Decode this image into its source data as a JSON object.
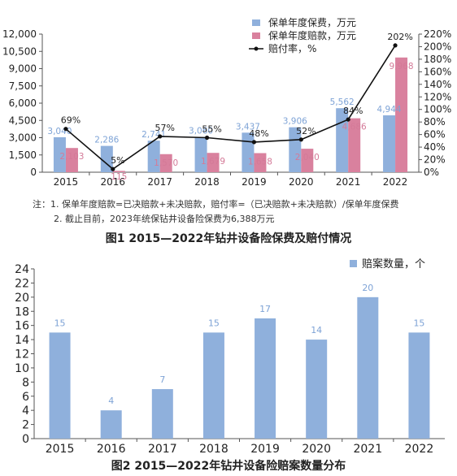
{
  "chart_data": [
    {
      "type": "bar",
      "caption": "图1   2015—2022年钻井设备险保费及赔付情况",
      "categories": [
        "2015",
        "2016",
        "2017",
        "2018",
        "2019",
        "2020",
        "2021",
        "2022"
      ],
      "series": [
        {
          "name": "保单年度保费，万元",
          "type": "bar",
          "axis": "left",
          "color": "#8fb0dc",
          "values": [
            3040,
            2286,
            2741,
            3060,
            3437,
            3906,
            5562,
            4944
          ]
        },
        {
          "name": "保单年度赔款，万元",
          "type": "bar",
          "axis": "left",
          "color": "#d9819e",
          "values": [
            2103,
            115,
            1570,
            1679,
            1658,
            2040,
            4686,
            9968
          ]
        },
        {
          "name": "赔付率，%",
          "type": "line",
          "axis": "right",
          "color": "#111111",
          "values": [
            69,
            5,
            57,
            55,
            48,
            52,
            84,
            202
          ]
        }
      ],
      "left_ticks": [
        "0",
        "1,500",
        "3,000",
        "4,500",
        "6,000",
        "7,500",
        "9,000",
        "10,500",
        "12,000"
      ],
      "right_ticks": [
        "0%",
        "20%",
        "40%",
        "60%",
        "80%",
        "100%",
        "120%",
        "140%",
        "160%",
        "180%",
        "200%",
        "220%"
      ],
      "ylim_left": [
        0,
        12000
      ],
      "ylim_right": [
        0,
        220
      ],
      "legend_position": "top-right",
      "notes": [
        "注：1. 保单年度赔款=已决赔款+未决赔款，赔付率=（已决赔款+未决赔款）/保单年度保费",
        "2. 截止目前，2023年统保钻井设备险保费为6,388万元"
      ]
    },
    {
      "type": "bar",
      "caption": "图2   2015—2022年钻井设备险赔案数量分布",
      "categories": [
        "2015",
        "2016",
        "2017",
        "2018",
        "2019",
        "2020",
        "2021",
        "2022"
      ],
      "series": [
        {
          "name": "赔案数量，个",
          "color": "#8fb0dc",
          "values": [
            15,
            4,
            7,
            15,
            17,
            14,
            20,
            15
          ]
        }
      ],
      "y_ticks": [
        "0",
        "2",
        "4",
        "6",
        "8",
        "10",
        "12",
        "14",
        "16",
        "18",
        "20",
        "22",
        "24"
      ],
      "ylim": [
        0,
        24
      ],
      "legend_position": "top-right"
    }
  ]
}
